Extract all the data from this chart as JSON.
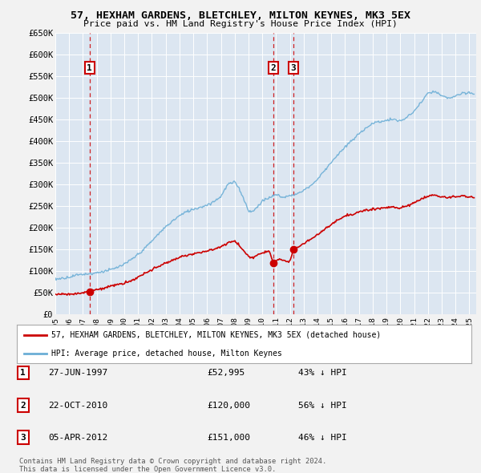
{
  "title": "57, HEXHAM GARDENS, BLETCHLEY, MILTON KEYNES, MK3 5EX",
  "subtitle": "Price paid vs. HM Land Registry's House Price Index (HPI)",
  "ylim": [
    0,
    650000
  ],
  "yticks": [
    0,
    50000,
    100000,
    150000,
    200000,
    250000,
    300000,
    350000,
    400000,
    450000,
    500000,
    550000,
    600000,
    650000
  ],
  "ytick_labels": [
    "£0",
    "£50K",
    "£100K",
    "£150K",
    "£200K",
    "£250K",
    "£300K",
    "£350K",
    "£400K",
    "£450K",
    "£500K",
    "£550K",
    "£600K",
    "£650K"
  ],
  "xlim_start": 1995.0,
  "xlim_end": 2025.5,
  "fig_bg_color": "#f2f2f2",
  "plot_bg_color": "#dce6f1",
  "hpi_color": "#6baed6",
  "price_color": "#cc0000",
  "sale_points": [
    {
      "year": 1997.485,
      "price": 52995,
      "label": "1"
    },
    {
      "year": 2010.808,
      "price": 120000,
      "label": "2"
    },
    {
      "year": 2012.258,
      "price": 151000,
      "label": "3"
    }
  ],
  "hpi_anchors": [
    [
      1995.0,
      82000
    ],
    [
      1995.5,
      84000
    ],
    [
      1996.0,
      87000
    ],
    [
      1996.5,
      91000
    ],
    [
      1997.0,
      94000
    ],
    [
      1997.5,
      95000
    ],
    [
      1998.0,
      97000
    ],
    [
      1998.5,
      100000
    ],
    [
      1999.0,
      104000
    ],
    [
      1999.5,
      109000
    ],
    [
      2000.0,
      116000
    ],
    [
      2000.5,
      126000
    ],
    [
      2001.0,
      138000
    ],
    [
      2001.5,
      152000
    ],
    [
      2002.0,
      168000
    ],
    [
      2002.5,
      185000
    ],
    [
      2003.0,
      200000
    ],
    [
      2003.5,
      215000
    ],
    [
      2004.0,
      228000
    ],
    [
      2004.5,
      237000
    ],
    [
      2005.0,
      242000
    ],
    [
      2005.5,
      247000
    ],
    [
      2006.0,
      252000
    ],
    [
      2006.5,
      260000
    ],
    [
      2007.0,
      272000
    ],
    [
      2007.5,
      300000
    ],
    [
      2008.0,
      305000
    ],
    [
      2008.25,
      295000
    ],
    [
      2008.5,
      278000
    ],
    [
      2008.75,
      258000
    ],
    [
      2009.0,
      240000
    ],
    [
      2009.25,
      235000
    ],
    [
      2009.5,
      242000
    ],
    [
      2009.75,
      252000
    ],
    [
      2010.0,
      260000
    ],
    [
      2010.25,
      265000
    ],
    [
      2010.5,
      268000
    ],
    [
      2010.75,
      272000
    ],
    [
      2011.0,
      275000
    ],
    [
      2011.25,
      272000
    ],
    [
      2011.5,
      268000
    ],
    [
      2011.75,
      270000
    ],
    [
      2012.0,
      272000
    ],
    [
      2012.25,
      275000
    ],
    [
      2012.5,
      278000
    ],
    [
      2012.75,
      280000
    ],
    [
      2013.0,
      285000
    ],
    [
      2013.5,
      295000
    ],
    [
      2014.0,
      310000
    ],
    [
      2014.5,
      330000
    ],
    [
      2015.0,
      350000
    ],
    [
      2015.5,
      368000
    ],
    [
      2016.0,
      385000
    ],
    [
      2016.5,
      400000
    ],
    [
      2017.0,
      415000
    ],
    [
      2017.5,
      430000
    ],
    [
      2018.0,
      440000
    ],
    [
      2018.5,
      445000
    ],
    [
      2019.0,
      448000
    ],
    [
      2019.5,
      450000
    ],
    [
      2020.0,
      445000
    ],
    [
      2020.5,
      455000
    ],
    [
      2021.0,
      470000
    ],
    [
      2021.5,
      490000
    ],
    [
      2022.0,
      510000
    ],
    [
      2022.5,
      515000
    ],
    [
      2023.0,
      505000
    ],
    [
      2023.5,
      500000
    ],
    [
      2024.0,
      505000
    ],
    [
      2024.5,
      510000
    ],
    [
      2025.0,
      512000
    ],
    [
      2025.3,
      510000
    ]
  ],
  "prop_anchors": [
    [
      1995.0,
      47000
    ],
    [
      1995.5,
      47500
    ],
    [
      1996.0,
      48000
    ],
    [
      1996.5,
      48500
    ],
    [
      1997.0,
      49500
    ],
    [
      1997.485,
      52995
    ],
    [
      1997.6,
      55000
    ],
    [
      1998.0,
      58000
    ],
    [
      1998.5,
      62000
    ],
    [
      1999.0,
      66000
    ],
    [
      1999.5,
      70000
    ],
    [
      2000.0,
      74000
    ],
    [
      2000.5,
      80000
    ],
    [
      2001.0,
      88000
    ],
    [
      2001.5,
      96000
    ],
    [
      2002.0,
      105000
    ],
    [
      2002.5,
      113000
    ],
    [
      2003.0,
      120000
    ],
    [
      2003.5,
      126000
    ],
    [
      2004.0,
      133000
    ],
    [
      2004.5,
      138000
    ],
    [
      2005.0,
      142000
    ],
    [
      2005.5,
      145000
    ],
    [
      2006.0,
      148000
    ],
    [
      2006.5,
      152000
    ],
    [
      2007.0,
      158000
    ],
    [
      2007.5,
      168000
    ],
    [
      2008.0,
      172000
    ],
    [
      2008.25,
      165000
    ],
    [
      2008.5,
      155000
    ],
    [
      2008.75,
      145000
    ],
    [
      2009.0,
      136000
    ],
    [
      2009.25,
      132000
    ],
    [
      2009.5,
      136000
    ],
    [
      2009.75,
      140000
    ],
    [
      2010.0,
      143000
    ],
    [
      2010.25,
      146000
    ],
    [
      2010.5,
      148000
    ],
    [
      2010.808,
      120000
    ],
    [
      2010.9,
      122000
    ],
    [
      2011.0,
      125000
    ],
    [
      2011.25,
      128000
    ],
    [
      2011.5,
      126000
    ],
    [
      2011.75,
      124000
    ],
    [
      2012.0,
      123000
    ],
    [
      2012.258,
      151000
    ],
    [
      2012.5,
      155000
    ],
    [
      2012.75,
      160000
    ],
    [
      2013.0,
      165000
    ],
    [
      2013.5,
      175000
    ],
    [
      2014.0,
      185000
    ],
    [
      2014.5,
      198000
    ],
    [
      2015.0,
      210000
    ],
    [
      2015.5,
      220000
    ],
    [
      2016.0,
      228000
    ],
    [
      2016.5,
      232000
    ],
    [
      2017.0,
      238000
    ],
    [
      2017.5,
      242000
    ],
    [
      2018.0,
      245000
    ],
    [
      2018.5,
      248000
    ],
    [
      2019.0,
      250000
    ],
    [
      2019.5,
      252000
    ],
    [
      2020.0,
      248000
    ],
    [
      2020.5,
      253000
    ],
    [
      2021.0,
      260000
    ],
    [
      2021.5,
      268000
    ],
    [
      2022.0,
      275000
    ],
    [
      2022.5,
      278000
    ],
    [
      2023.0,
      272000
    ],
    [
      2023.5,
      270000
    ],
    [
      2024.0,
      273000
    ],
    [
      2024.5,
      275000
    ],
    [
      2025.0,
      272000
    ],
    [
      2025.3,
      270000
    ]
  ],
  "table_rows": [
    {
      "num": "1",
      "date": "27-JUN-1997",
      "price": "£52,995",
      "pct": "43% ↓ HPI"
    },
    {
      "num": "2",
      "date": "22-OCT-2010",
      "price": "£120,000",
      "pct": "56% ↓ HPI"
    },
    {
      "num": "3",
      "date": "05-APR-2012",
      "price": "£151,000",
      "pct": "46% ↓ HPI"
    }
  ],
  "legend_label_red": "57, HEXHAM GARDENS, BLETCHLEY, MILTON KEYNES, MK3 5EX (detached house)",
  "legend_label_blue": "HPI: Average price, detached house, Milton Keynes",
  "footer_line1": "Contains HM Land Registry data © Crown copyright and database right 2024.",
  "footer_line2": "This data is licensed under the Open Government Licence v3.0."
}
